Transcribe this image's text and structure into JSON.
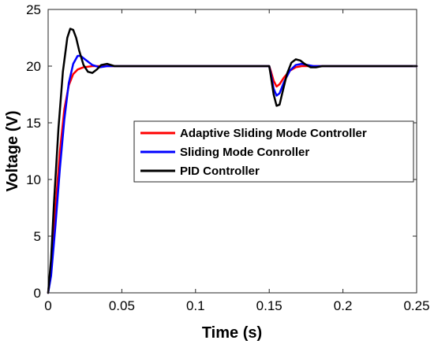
{
  "chart_data": {
    "type": "line",
    "title": "",
    "xlabel": "Time (s)",
    "ylabel": "Voltage (V)",
    "xlim": [
      0,
      0.25
    ],
    "ylim": [
      0,
      25
    ],
    "x_ticks": [
      0,
      0.05,
      0.1,
      0.15,
      0.2,
      0.25
    ],
    "x_tick_labels": [
      "0",
      "0.05",
      "0.1",
      "0.15",
      "0.2",
      "0.25"
    ],
    "y_ticks": [
      0,
      5,
      10,
      15,
      20,
      25
    ],
    "y_tick_labels": [
      "0",
      "5",
      "10",
      "15",
      "20",
      "25"
    ],
    "grid": false,
    "legend_position": "center-right",
    "series": [
      {
        "name": "Adaptive Sliding Mode Controller",
        "color": "#ff0000",
        "x": [
          0,
          0.002,
          0.005,
          0.008,
          0.011,
          0.014,
          0.017,
          0.02,
          0.024,
          0.03,
          0.04,
          0.05,
          0.1,
          0.15,
          0.151,
          0.153,
          0.155,
          0.157,
          0.16,
          0.164,
          0.168,
          0.172,
          0.178,
          0.185,
          0.2,
          0.25
        ],
        "y": [
          0,
          2.0,
          7.5,
          12.5,
          16.2,
          18.3,
          19.3,
          19.7,
          19.9,
          20.0,
          20.0,
          20.0,
          20.0,
          20.0,
          19.6,
          18.7,
          18.2,
          18.4,
          19.0,
          19.6,
          19.9,
          20.0,
          20.0,
          20.0,
          20.0,
          20.0
        ]
      },
      {
        "name": "Sliding Mode Conroller",
        "color": "#0000ff",
        "x": [
          0,
          0.002,
          0.005,
          0.008,
          0.011,
          0.014,
          0.017,
          0.02,
          0.022,
          0.025,
          0.03,
          0.035,
          0.04,
          0.05,
          0.1,
          0.15,
          0.151,
          0.153,
          0.155,
          0.157,
          0.16,
          0.164,
          0.168,
          0.172,
          0.176,
          0.18,
          0.19,
          0.2,
          0.25
        ],
        "y": [
          0,
          1.5,
          6.0,
          11.0,
          15.3,
          18.5,
          20.2,
          20.9,
          20.9,
          20.6,
          20.1,
          19.9,
          20.0,
          20.0,
          20.0,
          20.0,
          19.4,
          18.0,
          17.4,
          17.6,
          18.6,
          19.6,
          20.1,
          20.2,
          20.1,
          20.0,
          20.0,
          20.0,
          20.0
        ]
      },
      {
        "name": "PID Controller",
        "color": "#000000",
        "x": [
          0,
          0.002,
          0.004,
          0.007,
          0.01,
          0.013,
          0.015,
          0.017,
          0.019,
          0.021,
          0.024,
          0.027,
          0.03,
          0.033,
          0.036,
          0.04,
          0.045,
          0.05,
          0.055,
          0.06,
          0.1,
          0.15,
          0.151,
          0.153,
          0.155,
          0.157,
          0.159,
          0.162,
          0.165,
          0.168,
          0.171,
          0.174,
          0.178,
          0.182,
          0.186,
          0.19,
          0.2,
          0.25
        ],
        "y": [
          0,
          3.0,
          8.0,
          14.5,
          19.5,
          22.5,
          23.3,
          23.2,
          22.5,
          21.4,
          20.1,
          19.5,
          19.4,
          19.7,
          20.1,
          20.2,
          20.0,
          20.0,
          20.0,
          20.0,
          20.0,
          20.0,
          19.2,
          17.5,
          16.5,
          16.6,
          17.7,
          19.3,
          20.3,
          20.6,
          20.5,
          20.2,
          19.9,
          19.9,
          20.0,
          20.0,
          20.0,
          20.0
        ]
      }
    ]
  }
}
